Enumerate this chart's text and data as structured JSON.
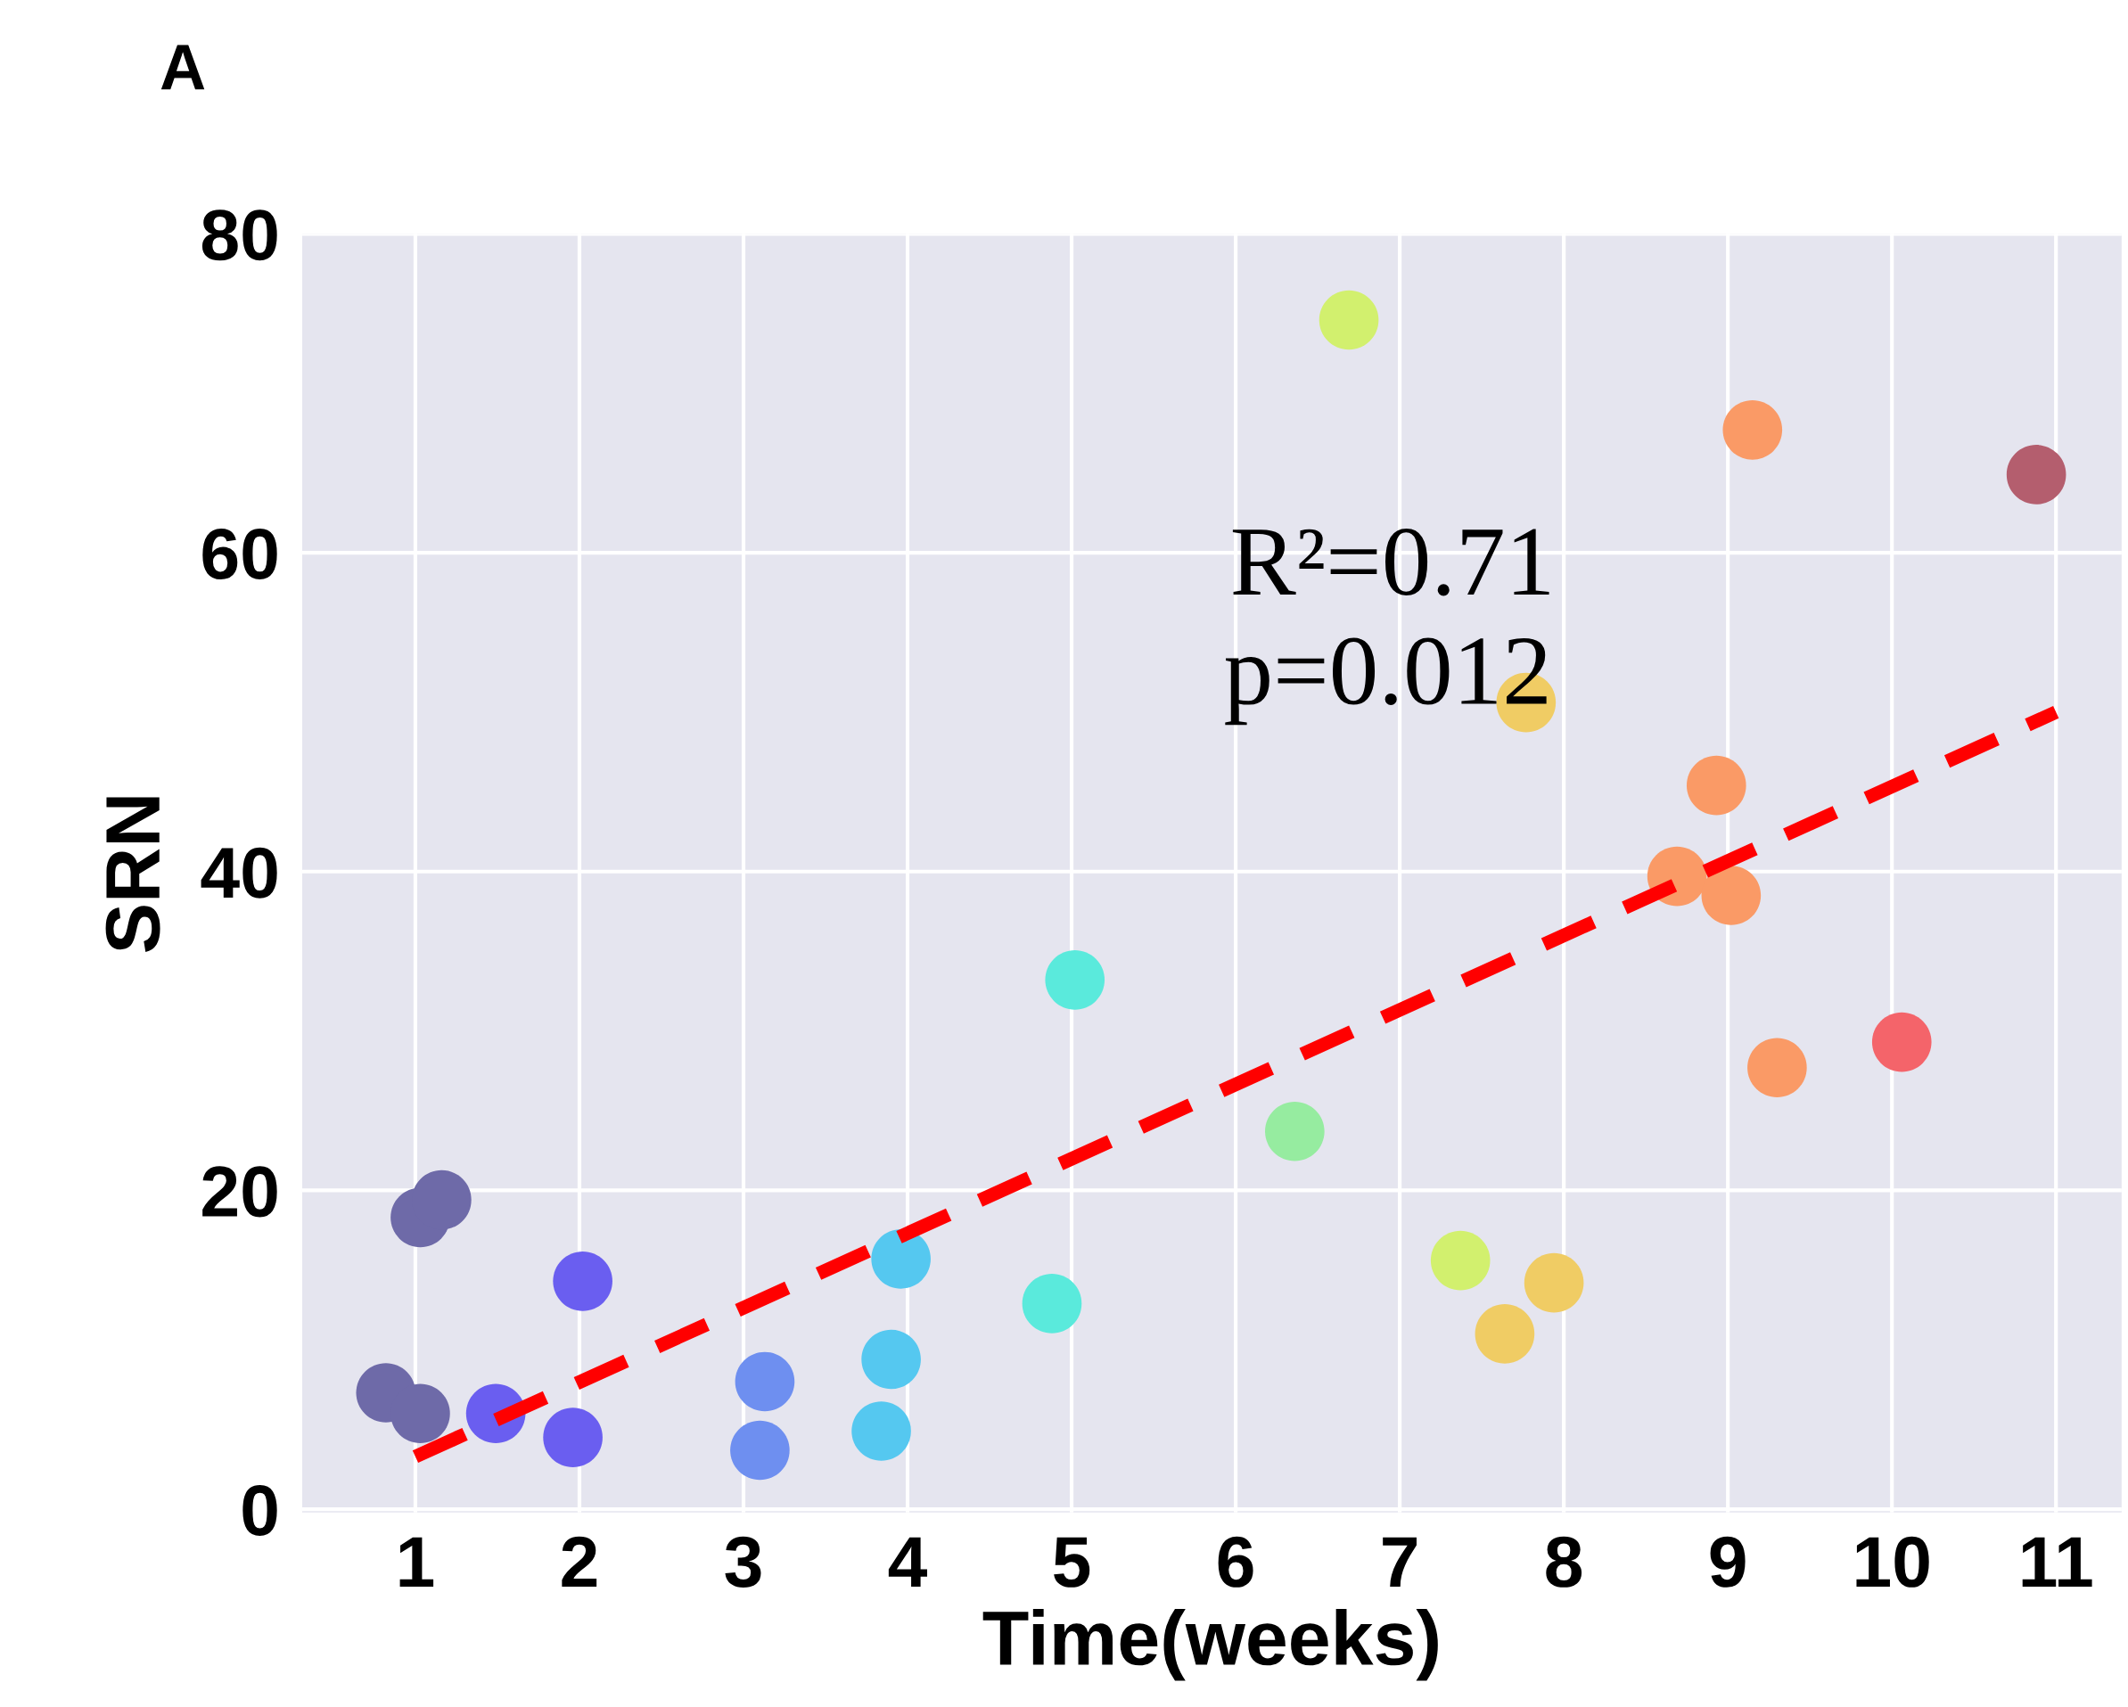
{
  "chart_data": {
    "type": "scatter",
    "xlabel": "Time(weeks)",
    "ylabel": "SRN",
    "xlim": [
      0.31,
      11.4
    ],
    "xticks": [
      1,
      2,
      3,
      4,
      5,
      6,
      7,
      8,
      9,
      10,
      11
    ],
    "ylim": [
      -0.2,
      80
    ],
    "yticks": [
      0,
      20,
      40,
      60,
      80
    ],
    "grid": true,
    "annotations": [
      "A",
      "R²=0.71",
      "p=0.012"
    ],
    "series": [
      {
        "marker": "circle",
        "x": [
          0.82,
          1.03,
          1.03,
          1.16,
          1.49,
          1.96,
          2.02,
          3.1,
          3.13,
          3.84,
          3.9,
          3.96,
          4.88,
          5.02,
          6.36,
          6.69,
          7.37,
          7.64,
          7.77,
          7.94,
          8.69,
          8.93,
          9.02,
          9.15,
          9.3,
          10.06,
          10.88
        ],
        "values": [
          7.3,
          6.0,
          18.3,
          19.4,
          6.0,
          4.5,
          14.3,
          3.7,
          8.0,
          4.9,
          9.4,
          15.7,
          12.9,
          33.2,
          23.7,
          74.6,
          15.6,
          11.0,
          50.6,
          14.2,
          39.7,
          45.4,
          38.5,
          67.7,
          27.7,
          29.3,
          64.9
        ],
        "colors": [
          "#6e6aa8",
          "#6e6aa8",
          "#6e6aa8",
          "#6e6aa8",
          "#6a5ef0",
          "#6a5ef0",
          "#6a5ef0",
          "#6e8ff0",
          "#6e8ff0",
          "#55c8f0",
          "#55c8f0",
          "#55c8f0",
          "#5aeadc",
          "#5aeadc",
          "#96eca0",
          "#d2f06e",
          "#d2f06e",
          "#f0cc64",
          "#f0cc64",
          "#f0cc64",
          "#fa9a66",
          "#fa9a66",
          "#fa9a66",
          "#fa9a66",
          "#fa9a66",
          "#f4646a",
          "#b45e6e"
        ]
      },
      {
        "type": "line",
        "x": [
          1.0,
          11.0
        ],
        "values": [
          3.3,
          50.0
        ],
        "color": "#ff0000",
        "line_style": "dashed"
      }
    ]
  }
}
